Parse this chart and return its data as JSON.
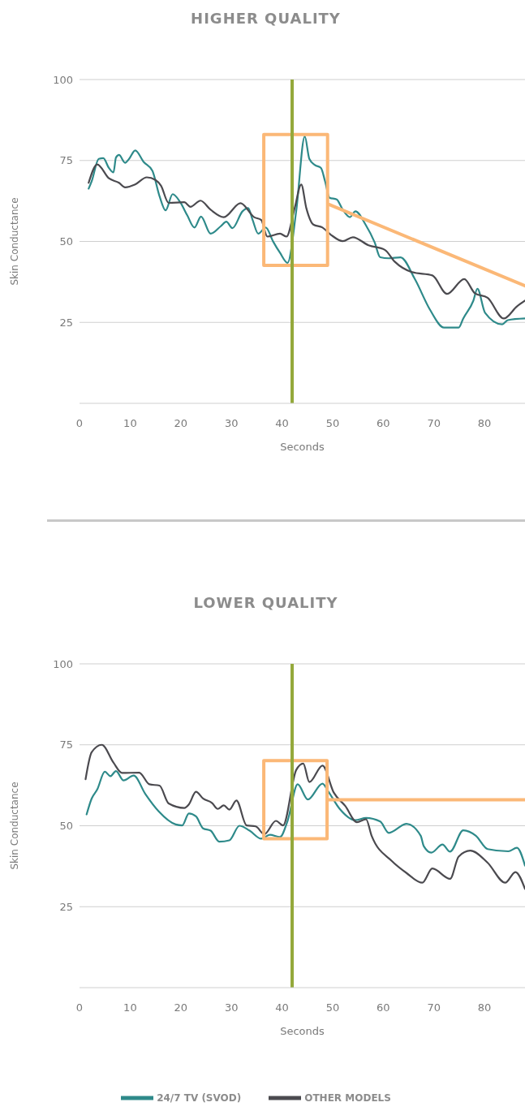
{
  "chart_data": [
    {
      "type": "line",
      "title": "HIGHER QUALITY",
      "xlabel": "Seconds",
      "ylabel": "Skin Conductance",
      "xlim": [
        0,
        88
      ],
      "xticks": [
        0,
        10,
        20,
        30,
        40,
        50,
        60,
        70,
        80
      ],
      "ylim": [
        0,
        100
      ],
      "yticks": [
        25,
        50,
        75,
        100
      ],
      "grid": "y",
      "legend": false,
      "marker": "none",
      "ref_lines": [
        {
          "axis": "x",
          "value": 42,
          "color": "#94a93b"
        }
      ],
      "series": [
        {
          "color": "#2e8a8a",
          "x": [
            1.8,
            2.4,
            3.8,
            4.7,
            5.8,
            6.7,
            7.2,
            7.8,
            9.0,
            9.8,
            11.0,
            12.7,
            14.4,
            15.8,
            17.0,
            18.4,
            19.9,
            21.3,
            22.7,
            24.0,
            25.9,
            27.9,
            29.0,
            30.2,
            32.2,
            33.3,
            34.2,
            35.3,
            36.8,
            38.2,
            39.6,
            41.1,
            42.8,
            44.5,
            45.4,
            46.5,
            47.7,
            48.5,
            49.4,
            50.8,
            52.0,
            53.4,
            54.5,
            56.5,
            58.3,
            59.4,
            61.1,
            63.4,
            66.3,
            69.2,
            72.0,
            74.9,
            75.8,
            77.8,
            78.6,
            80.1,
            83.5,
            84.6,
            88
          ],
          "values": [
            66.3,
            68.6,
            75.5,
            75.7,
            72.7,
            71.3,
            75.9,
            76.7,
            74.3,
            75.5,
            78.1,
            74.5,
            71.8,
            64,
            59.6,
            64.6,
            62.1,
            58,
            54.3,
            57.7,
            52.4,
            54.7,
            56.1,
            54.1,
            59.3,
            60.3,
            56.6,
            52.4,
            54.3,
            50.1,
            46.5,
            43.4,
            59.3,
            82.4,
            75.5,
            73.6,
            72.7,
            68.6,
            63.5,
            63,
            59.8,
            57.5,
            59.3,
            55.2,
            49.7,
            45.1,
            44.8,
            45.1,
            38.2,
            29,
            23.4,
            23.4,
            26.2,
            31.7,
            35.4,
            28,
            24.4,
            25.7,
            26.2
          ]
        },
        {
          "color": "#4b4a4f",
          "x": [
            1.8,
            3.5,
            5.8,
            7.8,
            9.0,
            11.0,
            13.3,
            15.0,
            16.1,
            17.6,
            20.7,
            21.9,
            23.9,
            25.9,
            28.5,
            31.8,
            34.5,
            35.9,
            37.1,
            39.6,
            40.9,
            42.5,
            43.8,
            44.8,
            46.2,
            48.0,
            49.7,
            52.0,
            54.0,
            57.1,
            60.3,
            62.3,
            65.7,
            69.7,
            72.6,
            76.0,
            78.1,
            80.6,
            83.8,
            86.4,
            88
          ],
          "values": [
            68.1,
            73.8,
            69.5,
            68.1,
            66.7,
            67.6,
            69.8,
            69,
            67.2,
            61.9,
            62.1,
            60.7,
            62.6,
            59.8,
            57.5,
            61.8,
            57.5,
            56.6,
            51.5,
            52.4,
            51.5,
            60.3,
            67.6,
            60.3,
            55.2,
            54.3,
            52,
            50.1,
            51.3,
            48.8,
            47.4,
            43.7,
            40.5,
            39.5,
            33.8,
            38.4,
            34,
            32.6,
            26.2,
            29.9,
            31.7
          ]
        },
        {
          "color": "#fbb877",
          "x": [
            49.0,
            49.0,
            36.4,
            36.4,
            49.0,
            49.0,
            88
          ],
          "values": [
            61.6,
            83,
            83,
            42.6,
            42.6,
            61.6,
            36.3
          ]
        }
      ]
    },
    {
      "type": "line",
      "title": "LOWER QUALITY",
      "xlabel": "Seconds",
      "ylabel": "Skin Conductance",
      "xlim": [
        0,
        88
      ],
      "xticks": [
        0,
        10,
        20,
        30,
        40,
        50,
        60,
        70,
        80
      ],
      "ylim": [
        0,
        100
      ],
      "yticks": [
        25,
        50,
        75,
        100
      ],
      "grid": "y",
      "legend": "bottom",
      "marker": "none",
      "ref_lines": [
        {
          "axis": "x",
          "value": 42,
          "color": "#94a93b"
        }
      ],
      "series": [
        {
          "name": "24/7 TV (SVOD)",
          "color": "#2e8a8a",
          "x": [
            1.4,
            2.4,
            3.5,
            5.0,
            6.1,
            7.2,
            8.7,
            10.7,
            13.0,
            15.6,
            19.0,
            20.3,
            21.6,
            23.0,
            24.4,
            25.9,
            27.6,
            29.6,
            31.6,
            33.6,
            35.9,
            37.6,
            39.6,
            41.1,
            43.1,
            45.1,
            48.0,
            49.1,
            51.4,
            54.5,
            56.6,
            59.4,
            61.1,
            64.6,
            67.4,
            68.0,
            69.5,
            71.7,
            73.2,
            75.8,
            78.3,
            80.6,
            84.7,
            86.4,
            88
          ],
          "values": [
            53.5,
            58.4,
            61.2,
            66.7,
            65.3,
            66.9,
            64,
            65.5,
            59.8,
            54.5,
            50.4,
            50.1,
            53.8,
            52.9,
            49.2,
            48.5,
            45.1,
            45.5,
            50,
            48.5,
            46,
            47.2,
            46.5,
            51.5,
            62.8,
            58.1,
            63,
            60.7,
            55.2,
            51.7,
            52.4,
            51.3,
            47.8,
            50.6,
            46.9,
            43.7,
            41.7,
            44.2,
            42,
            48.6,
            46.9,
            42.8,
            42.1,
            43.2,
            37.7
          ]
        },
        {
          "name": "OTHER MODELS",
          "color": "#4b4a4f",
          "x": [
            1.2,
            2.4,
            4.4,
            6.7,
            8.4,
            11.8,
            13.8,
            15.8,
            17.6,
            20.7,
            21.6,
            23.0,
            24.4,
            26.2,
            27.3,
            28.5,
            29.6,
            31.0,
            33.0,
            34.8,
            36.5,
            38.8,
            40.2,
            42.8,
            44.2,
            45.4,
            48.0,
            50.2,
            52.5,
            54.8,
            56.6,
            57.7,
            61.7,
            64.6,
            67.7,
            69.7,
            73.2,
            74.9,
            77.2,
            80.6,
            84.1,
            86.1,
            88
          ],
          "values": [
            64.4,
            72.7,
            75,
            69.5,
            66.3,
            66.4,
            62.8,
            62.4,
            56.9,
            55.5,
            56.6,
            60.5,
            58.4,
            57,
            55.2,
            56.3,
            55,
            57.8,
            50.1,
            49.8,
            47.4,
            51.5,
            50.1,
            67.2,
            69.2,
            63.5,
            68.6,
            60.3,
            56.1,
            51.1,
            52,
            46.9,
            39.1,
            35.4,
            32.4,
            36.8,
            33.6,
            40.5,
            42.3,
            38.6,
            32.4,
            35.7,
            30.5
          ]
        },
        {
          "color": "#fbb877",
          "x": [
            48.9,
            48.9,
            36.4,
            36.4,
            48.9,
            48.9,
            88
          ],
          "values": [
            58,
            70.1,
            70.1,
            46,
            46,
            58,
            58
          ]
        }
      ]
    }
  ]
}
